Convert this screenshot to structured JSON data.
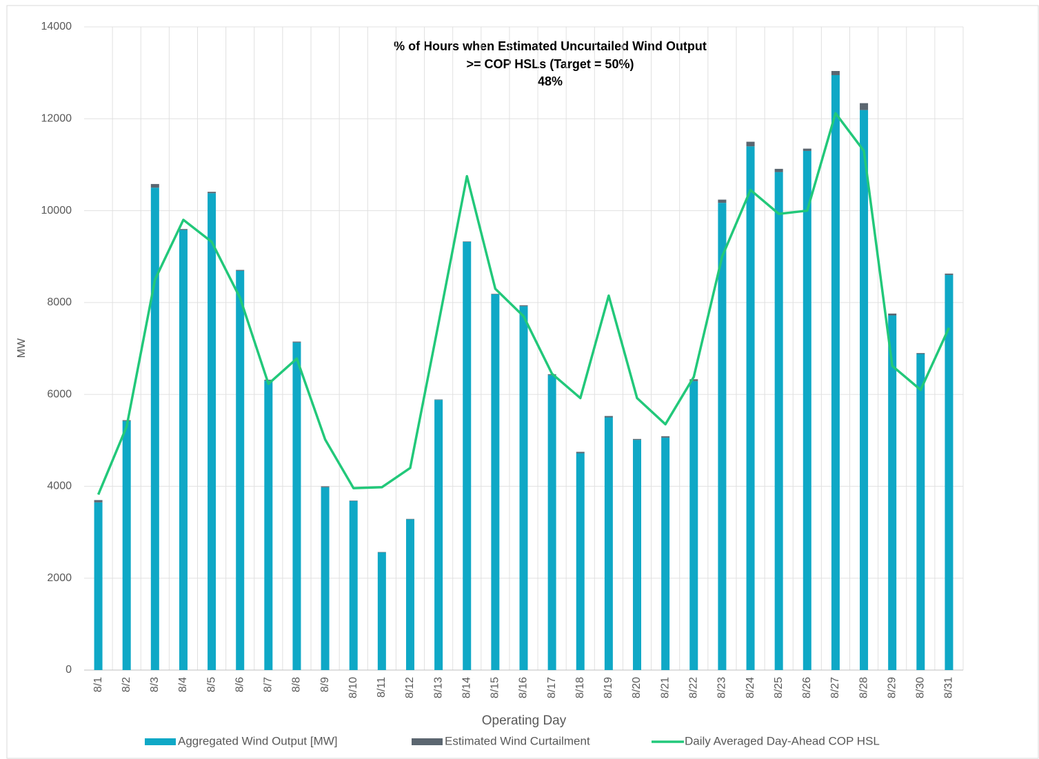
{
  "chart_data": {
    "type": "bar",
    "title": [
      "% of Hours when Estimated Uncurtailed Wind Output",
      ">= COP HSLs (Target = 50%)",
      "48%"
    ],
    "x_label": "Operating Day",
    "y_label": "MW",
    "categories": [
      "8/1",
      "8/2",
      "8/3",
      "8/4",
      "8/5",
      "8/6",
      "8/7",
      "8/8",
      "8/9",
      "8/10",
      "8/11",
      "8/12",
      "8/13",
      "8/14",
      "8/15",
      "8/16",
      "8/17",
      "8/18",
      "8/19",
      "8/20",
      "8/21",
      "8/22",
      "8/23",
      "8/24",
      "8/25",
      "8/26",
      "8/27",
      "8/28",
      "8/29",
      "8/30",
      "8/31"
    ],
    "series": [
      {
        "name": "Aggregated Wind Output [MW]",
        "type": "bar",
        "color": "#0fa8c6",
        "values": [
          3650,
          5420,
          10500,
          9580,
          10380,
          8690,
          6300,
          7130,
          3980,
          3680,
          2560,
          3280,
          5880,
          9320,
          8180,
          7920,
          6420,
          4720,
          5500,
          5010,
          5060,
          6290,
          10170,
          11400,
          10840,
          11300,
          12950,
          12190,
          7720,
          6880,
          8600
        ]
      },
      {
        "name": "Estimated Wind Curtailment",
        "type": "bar",
        "color": "#5b6670",
        "values": [
          50,
          20,
          80,
          20,
          30,
          20,
          20,
          20,
          20,
          10,
          10,
          10,
          10,
          10,
          10,
          20,
          20,
          30,
          30,
          20,
          30,
          40,
          70,
          100,
          70,
          50,
          90,
          150,
          40,
          20,
          30
        ]
      },
      {
        "name": "Daily Averaged Day-Ahead COP HSL",
        "type": "line",
        "color": "#22c87a",
        "values": [
          3820,
          5300,
          8500,
          9800,
          9320,
          8100,
          6230,
          6780,
          5020,
          3960,
          3980,
          4400,
          7550,
          10750,
          8300,
          7700,
          6450,
          5920,
          8150,
          5920,
          5350,
          6380,
          9000,
          10450,
          9930,
          10000,
          12120,
          11300,
          6620,
          6100,
          7450
        ]
      }
    ],
    "stacked": true,
    "ylim": [
      0,
      14000
    ],
    "yticks": [
      0,
      2000,
      4000,
      6000,
      8000,
      10000,
      12000,
      14000
    ],
    "grid": true
  }
}
